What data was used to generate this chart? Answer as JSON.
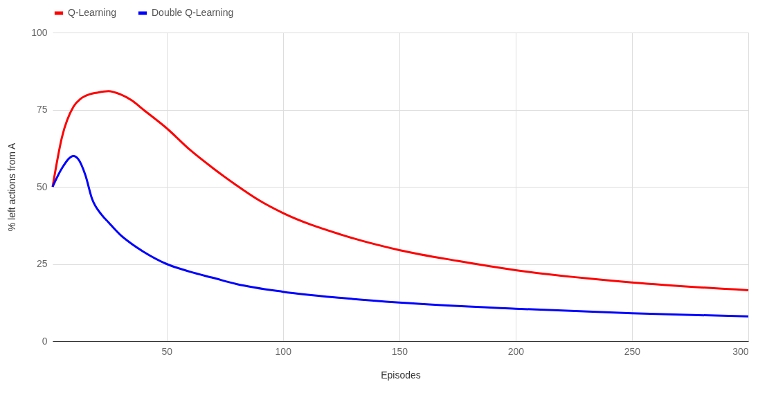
{
  "chart_data": {
    "type": "line",
    "xlabel": "Episodes",
    "ylabel": "% left actions from A",
    "xlim": [
      1,
      300
    ],
    "xticks": [
      50,
      100,
      150,
      200,
      250,
      300
    ],
    "ylim": [
      0,
      100
    ],
    "yticks": [
      0,
      25,
      50,
      75,
      100
    ],
    "grid": true,
    "legend": "top",
    "marker": "none",
    "line_style": "solid",
    "series": [
      {
        "name": "Q-Learning",
        "color": "#ff0000",
        "x": [
          1,
          5,
          10,
          13,
          17,
          20,
          25,
          30,
          35,
          40,
          50,
          60,
          70,
          80,
          90,
          100,
          125,
          150,
          175,
          200,
          250,
          300
        ],
        "values": [
          50,
          66,
          76,
          78.5,
          80,
          80.5,
          81,
          80,
          78,
          75,
          69,
          62,
          56,
          50.5,
          45.5,
          41.5,
          34.5,
          29.5,
          26,
          23,
          19,
          16.5
        ]
      },
      {
        "name": "Double Q-Learning",
        "color": "#0000ff",
        "x": [
          1,
          5,
          10,
          12,
          15,
          18,
          22,
          25,
          30,
          35,
          40,
          50,
          60,
          70,
          80,
          100,
          125,
          150,
          200,
          250,
          300
        ],
        "values": [
          50,
          56,
          60,
          59,
          54,
          46,
          41,
          38.5,
          34.5,
          31.5,
          29,
          25,
          22.5,
          20.5,
          18.5,
          16,
          14,
          12.5,
          10.5,
          9,
          8
        ]
      }
    ]
  }
}
